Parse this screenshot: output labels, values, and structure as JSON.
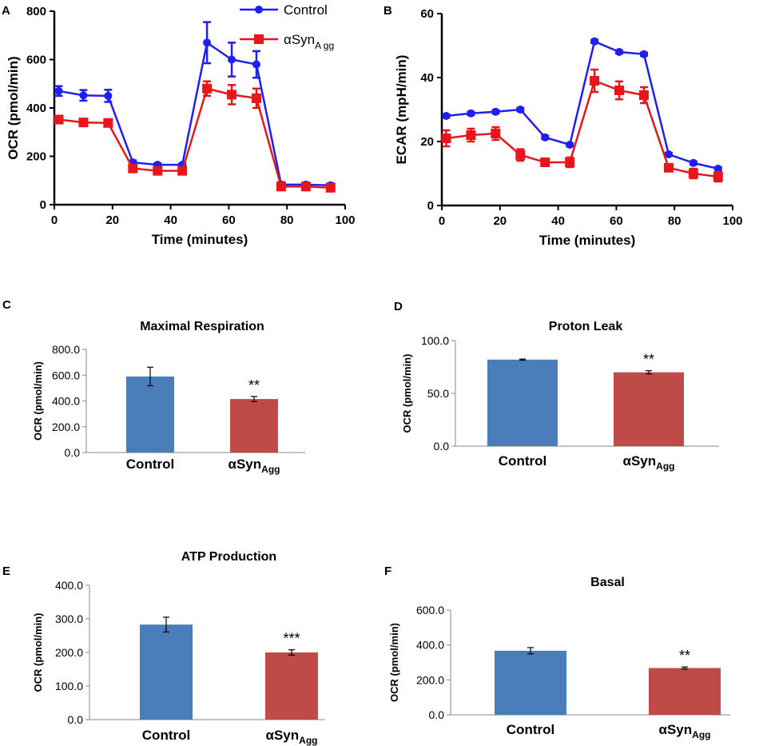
{
  "chart_data": [
    {
      "panel": "A",
      "type": "line",
      "xlabel": "Time (minutes)",
      "ylabel": "OCR (pmol/min)",
      "xlim": [
        0,
        100
      ],
      "ylim": [
        0,
        800
      ],
      "xticks": [
        "0",
        "20",
        "40",
        "60",
        "80",
        "100"
      ],
      "yticks": [
        "0",
        "200",
        "400",
        "600",
        "800"
      ],
      "legend": {
        "control": "Control",
        "agg_main": "αSyn",
        "agg_sub": "A gg"
      },
      "x": [
        1.5,
        10,
        18.5,
        27,
        35.5,
        44,
        52.5,
        61,
        69.5,
        78,
        86.5,
        95
      ],
      "series": [
        {
          "name": "Control",
          "color": "#1f1ff0",
          "values": [
            470,
            452,
            450,
            175,
            165,
            165,
            670,
            600,
            580,
            83,
            83,
            80
          ],
          "errors": [
            20,
            22,
            25,
            8,
            6,
            6,
            85,
            70,
            55,
            10,
            8,
            8
          ]
        },
        {
          "name": "αSynAgg",
          "color": "#e8161b",
          "values": [
            352,
            340,
            338,
            150,
            140,
            140,
            480,
            455,
            440,
            75,
            75,
            70
          ],
          "errors": [
            15,
            12,
            15,
            8,
            6,
            8,
            30,
            40,
            40,
            8,
            8,
            6
          ]
        }
      ]
    },
    {
      "panel": "B",
      "type": "line",
      "xlabel": "Time (minutes)",
      "ylabel": "ECAR (mpH/min)",
      "xlim": [
        0,
        100
      ],
      "ylim": [
        0,
        60
      ],
      "xticks": [
        "0",
        "20",
        "40",
        "60",
        "80",
        "100"
      ],
      "yticks": [
        "0",
        "20",
        "40",
        "60"
      ],
      "x": [
        1.5,
        10,
        18.5,
        27,
        35.5,
        44,
        52.5,
        61,
        69.5,
        78,
        86.5,
        95
      ],
      "series": [
        {
          "name": "Control",
          "color": "#1f1ff0",
          "values": [
            28,
            28.8,
            29.3,
            30,
            21.3,
            19,
            51.3,
            48,
            47.3,
            16,
            13.3,
            11.5
          ],
          "errors": [
            0.5,
            0.5,
            0.5,
            0.5,
            0.5,
            0.5,
            0.5,
            0.5,
            0.5,
            0.5,
            0.5,
            0.5
          ]
        },
        {
          "name": "αSynAgg",
          "color": "#e8161b",
          "values": [
            21,
            22,
            22.5,
            15.8,
            13.5,
            13.5,
            39,
            36,
            34.5,
            11.8,
            10,
            9
          ],
          "errors": [
            2.5,
            2,
            2,
            1.8,
            1,
            1.5,
            3.5,
            2.8,
            2.5,
            1,
            1.5,
            1.5
          ]
        }
      ]
    },
    {
      "panel": "C",
      "type": "bar",
      "title": "Maximal Respiration",
      "ylabel": "OCR (pmol/min)",
      "ylim": [
        0,
        800
      ],
      "yticks": [
        "0.0",
        "200.0",
        "400.0",
        "600.0",
        "800.0"
      ],
      "categories": [
        {
          "main": "Control",
          "sub": ""
        },
        {
          "main": "αSyn",
          "sub": "Agg"
        }
      ],
      "values": [
        590,
        415
      ],
      "errors": [
        72,
        20
      ],
      "colors": [
        "#4a7ebb",
        "#be4b48"
      ],
      "significance": [
        "",
        "**"
      ]
    },
    {
      "panel": "D",
      "type": "bar",
      "title": "Proton Leak",
      "ylabel": "OCR (pmol/min)",
      "ylim": [
        0,
        100
      ],
      "yticks": [
        "0.0",
        "50.0",
        "100.0"
      ],
      "categories": [
        {
          "main": "Control",
          "sub": ""
        },
        {
          "main": "αSyn",
          "sub": "Agg"
        }
      ],
      "values": [
        82,
        70
      ],
      "errors": [
        0.5,
        1.5
      ],
      "colors": [
        "#4a7ebb",
        "#be4b48"
      ],
      "significance": [
        "",
        "**"
      ]
    },
    {
      "panel": "E",
      "type": "bar",
      "title": "ATP Production",
      "ylabel": "OCR (pmol/min)",
      "ylim": [
        0,
        400
      ],
      "yticks": [
        "0.0",
        "100.0",
        "200.0",
        "300.0",
        "400.0"
      ],
      "categories": [
        {
          "main": "Control",
          "sub": ""
        },
        {
          "main": "αSyn",
          "sub": "Agg"
        }
      ],
      "values": [
        283,
        200
      ],
      "errors": [
        22,
        8
      ],
      "colors": [
        "#4a7ebb",
        "#be4b48"
      ],
      "significance": [
        "",
        "***"
      ]
    },
    {
      "panel": "F",
      "type": "bar",
      "title": "Basal",
      "ylabel": "OCR (pmol/min)",
      "ylim": [
        0,
        600
      ],
      "yticks": [
        "0.0",
        "200.0",
        "400.0",
        "600.0"
      ],
      "categories": [
        {
          "main": "Control",
          "sub": ""
        },
        {
          "main": "αSyn",
          "sub": "Agg"
        }
      ],
      "values": [
        367,
        268
      ],
      "errors": [
        18,
        6
      ],
      "colors": [
        "#4a7ebb",
        "#be4b48"
      ],
      "significance": [
        "",
        "**"
      ]
    }
  ]
}
